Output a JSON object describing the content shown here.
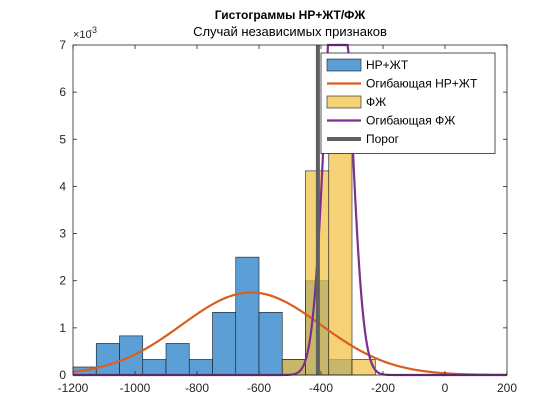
{
  "chart_data": {
    "type": "bar",
    "title": "Гистограммы НР+ЖТ/ФЖ",
    "subtitle": "Случай независимых признаков",
    "xlabel": "",
    "ylabel": "",
    "xlim": [
      -1200,
      200
    ],
    "ylim": [
      0,
      0.007
    ],
    "y_multiplier_label": "×10",
    "y_multiplier_exp": "-3",
    "xticks": [
      -1200,
      -1000,
      -800,
      -600,
      -400,
      -200,
      0,
      200
    ],
    "xtick_labels": [
      "-1200",
      "-1000",
      "-800",
      "-600",
      "-400",
      "-200",
      "0",
      "200"
    ],
    "yticks": [
      0,
      0.001,
      0.002,
      0.003,
      0.004,
      0.005,
      0.006,
      0.007
    ],
    "ytick_labels": [
      "0",
      "1",
      "2",
      "3",
      "4",
      "5",
      "6",
      "7"
    ],
    "grid": false,
    "legend_position": "top-right",
    "series": [
      {
        "name": "НР+ЖТ",
        "kind": "histogram",
        "color": "#5b9fd6",
        "bin_width": 75,
        "bins": [
          {
            "x0": -1200,
            "value": 0.00017
          },
          {
            "x0": -1125,
            "value": 0.00067
          },
          {
            "x0": -1050,
            "value": 0.00083
          },
          {
            "x0": -975,
            "value": 0.00033
          },
          {
            "x0": -900,
            "value": 0.00067
          },
          {
            "x0": -825,
            "value": 0.00033
          },
          {
            "x0": -750,
            "value": 0.00133
          },
          {
            "x0": -675,
            "value": 0.0025
          },
          {
            "x0": -600,
            "value": 0.00133
          },
          {
            "x0": -525,
            "value": 0.00033
          },
          {
            "x0": -450,
            "value": 0.002
          },
          {
            "x0": -375,
            "value": 0.00033
          },
          {
            "x0": -300,
            "value": 0.0
          }
        ]
      },
      {
        "name": "Огибающая НР+ЖТ",
        "kind": "line",
        "color": "#d95f1e",
        "distribution": {
          "mean": -625,
          "std": 225,
          "peak": 0.00175
        }
      },
      {
        "name": "ФЖ",
        "kind": "histogram",
        "color": "#f0c040",
        "bin_width": 75,
        "bins": [
          {
            "x0": -525,
            "value": 0.00033
          },
          {
            "x0": -450,
            "value": 0.00433
          },
          {
            "x0": -375,
            "value": 0.0053
          },
          {
            "x0": -300,
            "value": 0.00033
          }
        ]
      },
      {
        "name": "Огибающая ФЖ",
        "kind": "line",
        "color": "#7e2f8e",
        "distribution": {
          "mean": -345,
          "std": 40,
          "peak": 0.0098
        }
      },
      {
        "name": "Порог",
        "kind": "vline",
        "color": "#606060",
        "x": -410
      }
    ]
  }
}
